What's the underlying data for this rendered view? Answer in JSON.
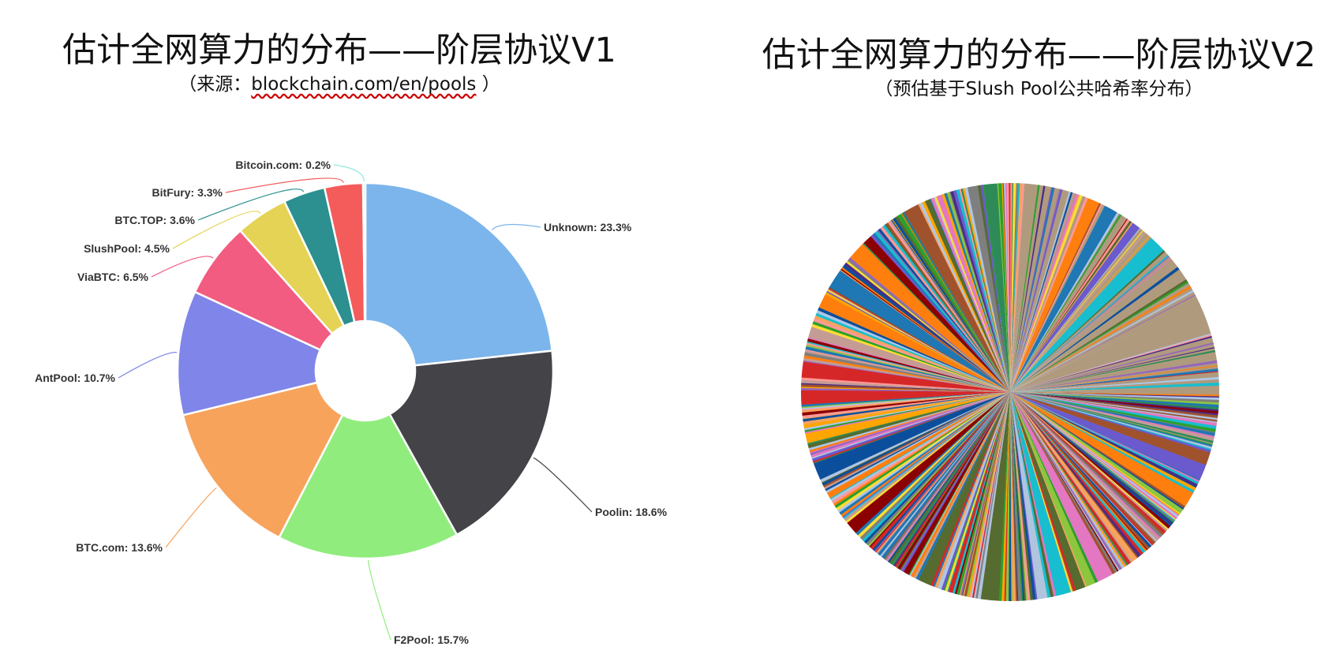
{
  "chart_data": [
    {
      "type": "pie",
      "title": "估计全网算力的分布——阶层协议V1",
      "subtitle_prefix": "（来源：",
      "subtitle_link": "blockchain.com/en/pools",
      "subtitle_suffix": " ）",
      "donut": true,
      "slices": [
        {
          "label": "Unknown: 23.3%",
          "name": "Unknown",
          "value": 23.3,
          "color": "#7cb5ec"
        },
        {
          "label": "Poolin: 18.6%",
          "name": "Poolin",
          "value": 18.6,
          "color": "#434348"
        },
        {
          "label": "F2Pool: 15.7%",
          "name": "F2Pool",
          "value": 15.7,
          "color": "#90ed7d"
        },
        {
          "label": "BTC.com: 13.6%",
          "name": "BTC.com",
          "value": 13.6,
          "color": "#f7a35c"
        },
        {
          "label": "AntPool: 10.7%",
          "name": "AntPool",
          "value": 10.7,
          "color": "#8085e9"
        },
        {
          "label": "ViaBTC: 6.5%",
          "name": "ViaBTC",
          "value": 6.5,
          "color": "#f15c80"
        },
        {
          "label": "SlushPool: 4.5%",
          "name": "SlushPool",
          "value": 4.5,
          "color": "#e4d354"
        },
        {
          "label": "BTC.TOP: 3.6%",
          "name": "BTC.TOP",
          "value": 3.6,
          "color": "#2b908f"
        },
        {
          "label": "BitFury: 3.3%",
          "name": "BitFury",
          "value": 3.3,
          "color": "#f45b5b"
        },
        {
          "label": "Bitcoin.com: 0.2%",
          "name": "Bitcoin.com",
          "value": 0.2,
          "color": "#91e8e1"
        }
      ]
    },
    {
      "type": "pie",
      "title": "估计全网算力的分布——阶层协议V2",
      "subtitle": "（预估基于Slush Pool公共哈希率分布）",
      "palette": [
        "#b09a7e",
        "#1f77b4",
        "#ff7f0e",
        "#2ca02c",
        "#d62728",
        "#9467bd",
        "#ffdd33",
        "#8cc63f",
        "#17becf",
        "#a0522d",
        "#e377c2",
        "#7f7f7f",
        "#0b4f9c",
        "#f7a35c",
        "#556b2f",
        "#8b0000",
        "#4b2c83",
        "#aec7e8",
        "#ff9896",
        "#c49c94",
        "#2e8b57",
        "#ffa500",
        "#6a5acd",
        "#b0c4de"
      ]
    }
  ]
}
